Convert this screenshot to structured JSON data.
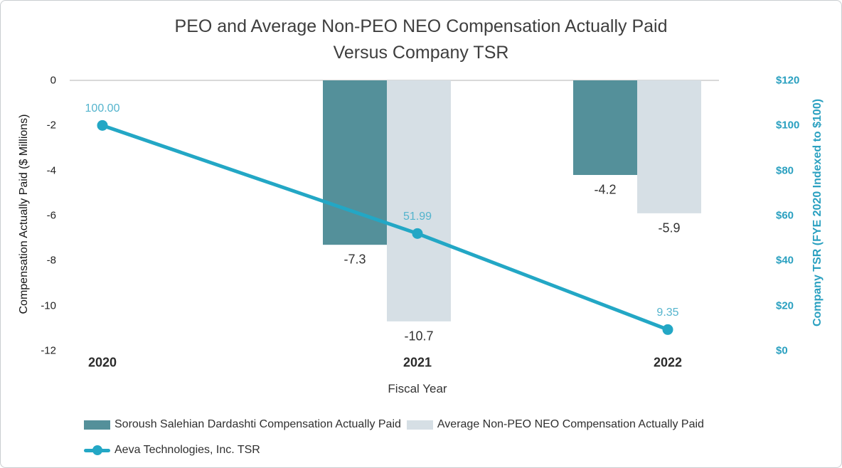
{
  "title": {
    "line1": "PEO and Average Non-PEO NEO Compensation Actually Paid",
    "line2": "Versus Company TSR"
  },
  "colors": {
    "bar_dark_teal": "#54909A",
    "bar_light_gray": "#D6DFE5",
    "line_teal": "#23A7C5",
    "point_label_teal": "#54B4CD",
    "right_axis_teal": "#2AA0C0",
    "grid": "#D9D9D9"
  },
  "chart_data": {
    "type": "bar",
    "subtype": "grouped bars with overlaid line (dual axis combo)",
    "categories": [
      "2020",
      "2021",
      "2022"
    ],
    "series": [
      {
        "key": "peo",
        "name": "Soroush Salehian Dardashti Compensation Actually Paid",
        "type": "bar",
        "axis": "left",
        "color": "#54909A",
        "values": [
          null,
          -7.3,
          -4.2
        ],
        "labels": [
          "",
          "-7.3",
          "-4.2"
        ]
      },
      {
        "key": "nonpeo",
        "name": "Average Non-PEO NEO Compensation Actually Paid",
        "type": "bar",
        "axis": "left",
        "color": "#D6DFE5",
        "values": [
          null,
          -10.7,
          -5.9
        ],
        "labels": [
          "",
          "-10.7",
          "-5.9"
        ]
      },
      {
        "key": "tsr",
        "name": "Aeva Technologies, Inc. TSR",
        "type": "line",
        "axis": "right",
        "color": "#23A7C5",
        "values": [
          100.0,
          51.99,
          9.35
        ],
        "labels": [
          "100.00",
          "51.99",
          "9.35"
        ]
      }
    ],
    "left_axis": {
      "title": "Compensation Actually Paid ($ Millions)",
      "ticks": [
        "0",
        "-2",
        "-4",
        "-6",
        "-8",
        "-10",
        "-12"
      ],
      "range": [
        0,
        -12
      ]
    },
    "right_axis": {
      "title": "Company TSR (FYE 2020 Indexed to $100)",
      "ticks": [
        "$120",
        "$100",
        "$80",
        "$60",
        "$40",
        "$20",
        "$0"
      ],
      "range": [
        120,
        0
      ]
    },
    "x_axis": {
      "title": "Fiscal Year"
    },
    "legend_position": "bottom",
    "grid": "single zero gridline only"
  }
}
